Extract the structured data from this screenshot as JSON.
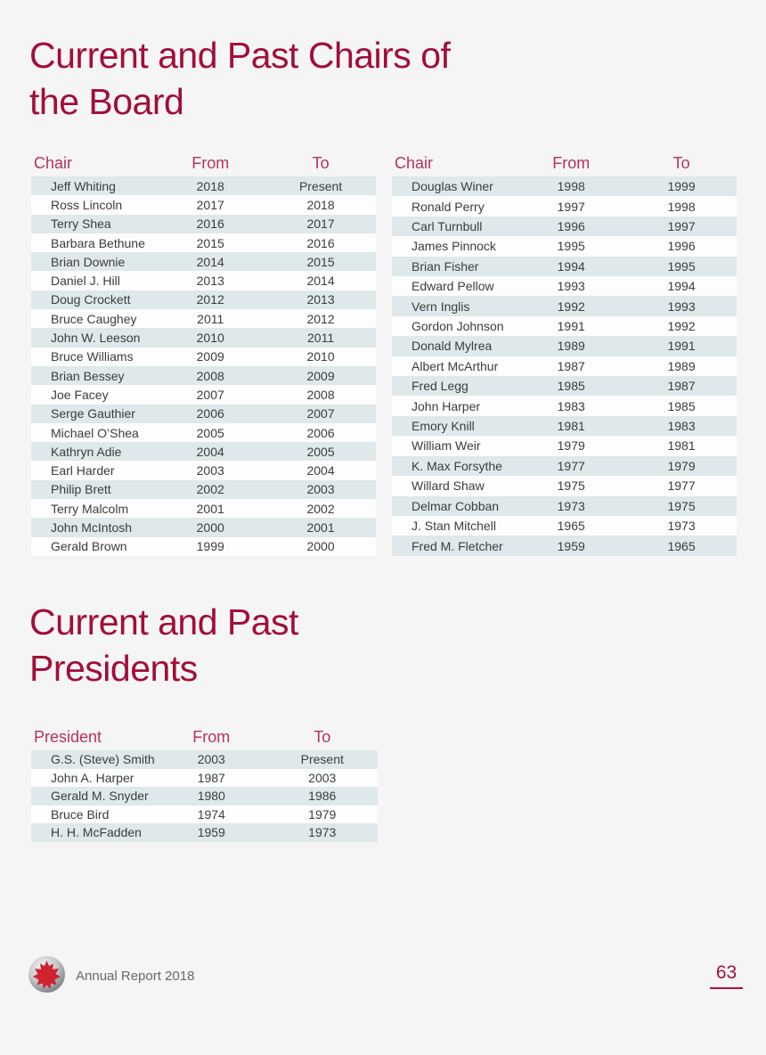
{
  "page": {
    "background": "#f5f5f6",
    "colors": {
      "title_red": "#a20e37",
      "table_header_red": "#b73256",
      "row_shade": "#dfe8ea",
      "footer_gray": "#66696c",
      "page_number_red": "#a31238"
    },
    "footer": {
      "brand": "Annual Report 2018",
      "logo_icon": "maple-leaf-globe-icon",
      "page_number": "63"
    }
  },
  "chairs": {
    "title_line1": "Current and Past Chairs of",
    "title_line2": "the Board",
    "columns": [
      "Chair",
      "From",
      "To"
    ],
    "left_rows": [
      [
        "Jeff Whiting",
        "2018",
        "Present"
      ],
      [
        "Ross Lincoln",
        "2017",
        "2018"
      ],
      [
        "Terry Shea",
        "2016",
        "2017"
      ],
      [
        "Barbara Bethune",
        "2015",
        "2016"
      ],
      [
        "Brian Downie",
        "2014",
        "2015"
      ],
      [
        "Daniel J. Hill",
        "2013",
        "2014"
      ],
      [
        "Doug Crockett",
        "2012",
        "2013"
      ],
      [
        "Bruce Caughey",
        "2011",
        "2012"
      ],
      [
        "John W. Leeson",
        "2010",
        "2011"
      ],
      [
        "Bruce Williams",
        "2009",
        "2010"
      ],
      [
        "Brian Bessey",
        "2008",
        "2009"
      ],
      [
        "Joe Facey",
        "2007",
        "2008"
      ],
      [
        "Serge Gauthier",
        "2006",
        "2007"
      ],
      [
        "Michael O’Shea",
        "2005",
        "2006"
      ],
      [
        "Kathryn Adie",
        "2004",
        "2005"
      ],
      [
        "Earl Harder",
        "2003",
        "2004"
      ],
      [
        "Philip Brett",
        "2002",
        "2003"
      ],
      [
        "Terry Malcolm",
        "2001",
        "2002"
      ],
      [
        "John McIntosh",
        "2000",
        "2001"
      ],
      [
        "Gerald Brown",
        "1999",
        "2000"
      ]
    ],
    "right_rows": [
      [
        "Douglas Winer",
        "1998",
        "1999"
      ],
      [
        "Ronald Perry",
        "1997",
        "1998"
      ],
      [
        "Carl Turnbull",
        "1996",
        "1997"
      ],
      [
        "James Pinnock",
        "1995",
        "1996"
      ],
      [
        "Brian Fisher",
        "1994",
        "1995"
      ],
      [
        "Edward Pellow",
        "1993",
        "1994"
      ],
      [
        "Vern Inglis",
        "1992",
        "1993"
      ],
      [
        "Gordon Johnson",
        "1991",
        "1992"
      ],
      [
        "Donald Mylrea",
        "1989",
        "1991"
      ],
      [
        "Albert McArthur",
        "1987",
        "1989"
      ],
      [
        "Fred Legg",
        "1985",
        "1987"
      ],
      [
        "John Harper",
        "1983",
        "1985"
      ],
      [
        "Emory Knill",
        "1981",
        "1983"
      ],
      [
        "William Weir",
        "1979",
        "1981"
      ],
      [
        "K. Max Forsythe",
        "1977",
        "1979"
      ],
      [
        "Willard Shaw",
        "1975",
        "1977"
      ],
      [
        "Delmar Cobban",
        "1973",
        "1975"
      ],
      [
        "J. Stan Mitchell",
        "1965",
        "1973"
      ],
      [
        "Fred M. Fletcher",
        "1959",
        "1965"
      ]
    ]
  },
  "presidents": {
    "title_line1": "Current and Past",
    "title_line2": "Presidents",
    "columns": [
      "President",
      "From",
      "To"
    ],
    "rows": [
      [
        "G.S. (Steve) Smith",
        "2003",
        "Present"
      ],
      [
        "John A. Harper",
        "1987",
        "2003"
      ],
      [
        "Gerald M. Snyder",
        "1980",
        "1986"
      ],
      [
        "Bruce Bird",
        "1974",
        "1979"
      ],
      [
        "H. H. McFadden",
        "1959",
        "1973"
      ]
    ]
  }
}
